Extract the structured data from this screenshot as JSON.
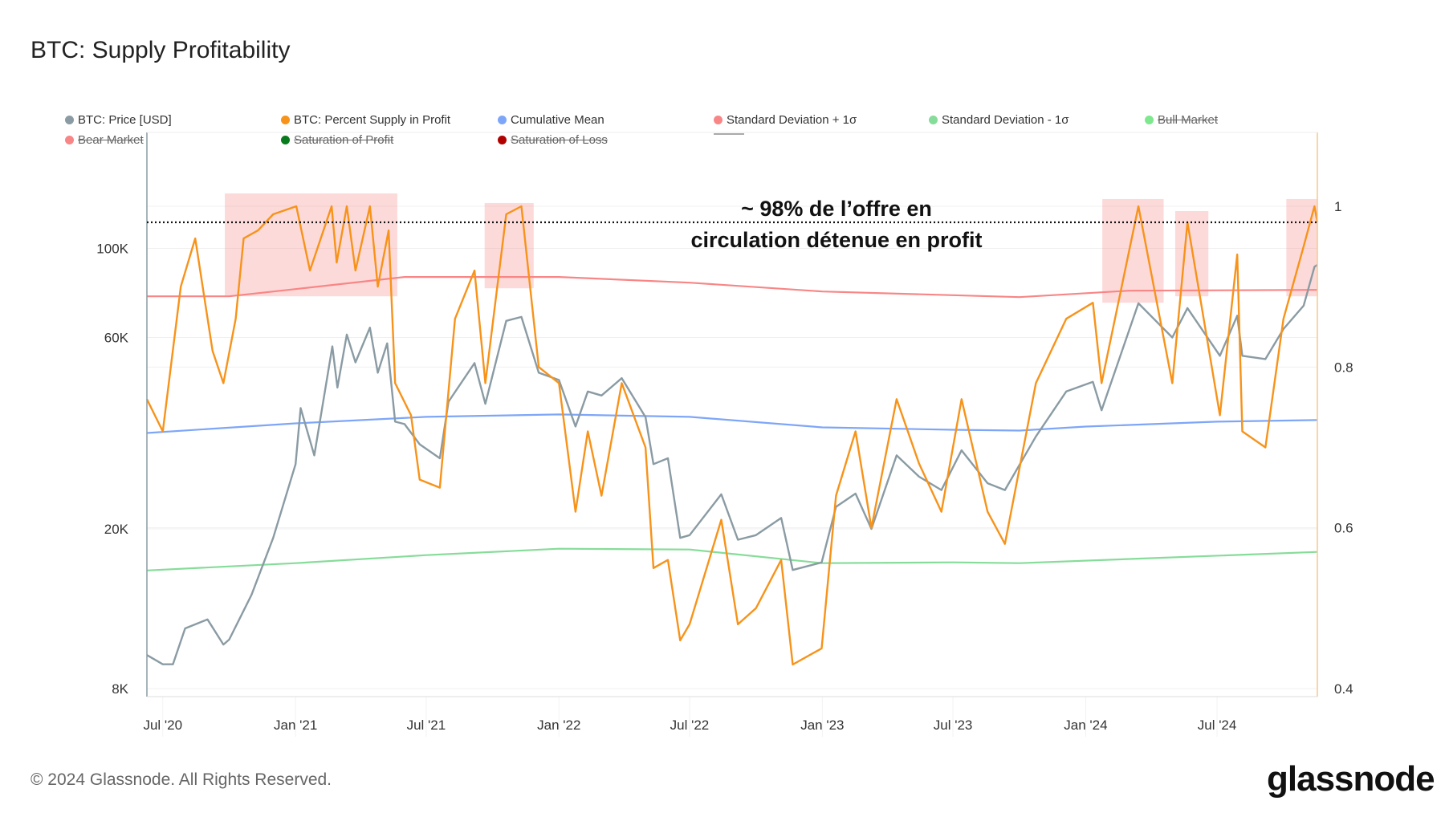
{
  "header": {
    "title": "BTC: Supply Profitability"
  },
  "legend": [
    {
      "label": "BTC: Price [USD]",
      "color": "#8a9ba3",
      "enabled": true
    },
    {
      "label": "BTC: Percent Supply in Profit",
      "color": "#f7931a",
      "enabled": true
    },
    {
      "label": "Cumulative Mean",
      "color": "#7ea6f8",
      "enabled": true
    },
    {
      "label": "Standard Deviation + 1σ",
      "color": "#f88686",
      "enabled": true
    },
    {
      "label": "Standard Deviation - 1σ",
      "color": "#86dc99",
      "enabled": true
    },
    {
      "label": "Bull Market",
      "color": "#7ee88f",
      "enabled": false
    },
    {
      "label": "Bear Market",
      "color": "#f88686",
      "enabled": false
    },
    {
      "label": "Saturation of Profit",
      "color": "#0a7a1e",
      "enabled": false
    },
    {
      "label": "Saturation of Loss",
      "color": "#b00000",
      "enabled": false
    },
    {
      "label": "---",
      "color": "#aaaaaa",
      "enabled": true
    }
  ],
  "footer": {
    "copyright": "© 2024 Glassnode. All Rights Reserved.",
    "logo": "glassnode"
  },
  "chart_data": {
    "type": "line",
    "title": "BTC: Supply Profitability",
    "x_range": [
      "2020-06-09",
      "2024-11-17"
    ],
    "x_ticks": [
      {
        "date": "2020-07-01",
        "label": "Jul '20"
      },
      {
        "date": "2021-01-01",
        "label": "Jan '21"
      },
      {
        "date": "2021-07-01",
        "label": "Jul '21"
      },
      {
        "date": "2022-01-01",
        "label": "Jan '22"
      },
      {
        "date": "2022-07-01",
        "label": "Jul '22"
      },
      {
        "date": "2023-01-01",
        "label": "Jan '23"
      },
      {
        "date": "2023-07-01",
        "label": "Jul '23"
      },
      {
        "date": "2024-01-01",
        "label": "Jan '24"
      },
      {
        "date": "2024-07-01",
        "label": "Jul '24"
      }
    ],
    "y_left": {
      "scale": "log",
      "range": [
        8000,
        200000
      ],
      "ticks": [
        {
          "v": 8000,
          "label": "8K"
        },
        {
          "v": 20000,
          "label": "20K"
        },
        {
          "v": 60000,
          "label": "60K"
        },
        {
          "v": 100000,
          "label": "100K"
        }
      ]
    },
    "y_right": {
      "scale": "linear",
      "range": [
        0.4,
        1.0
      ],
      "ticks": [
        {
          "v": 0.4,
          "label": "0.4"
        },
        {
          "v": 0.6,
          "label": "0.6"
        },
        {
          "v": 0.8,
          "label": "0.8"
        },
        {
          "v": 1.0,
          "label": "1"
        }
      ]
    },
    "grid": true,
    "legend_position": "top",
    "series": [
      {
        "name": "BTC: Price [USD]",
        "axis": "left",
        "color": "#8a9ba3",
        "points": [
          [
            "2020-06-09",
            9700
          ],
          [
            "2020-07-01",
            9200
          ],
          [
            "2020-07-15",
            9200
          ],
          [
            "2020-08-01",
            11300
          ],
          [
            "2020-09-01",
            11900
          ],
          [
            "2020-09-23",
            10300
          ],
          [
            "2020-10-01",
            10600
          ],
          [
            "2020-11-01",
            13700
          ],
          [
            "2020-12-01",
            19000
          ],
          [
            "2021-01-01",
            29000
          ],
          [
            "2021-01-08",
            40000
          ],
          [
            "2021-01-27",
            30500
          ],
          [
            "2021-02-21",
            57000
          ],
          [
            "2021-02-28",
            45000
          ],
          [
            "2021-03-13",
            61000
          ],
          [
            "2021-03-25",
            52000
          ],
          [
            "2021-04-14",
            63500
          ],
          [
            "2021-04-25",
            49000
          ],
          [
            "2021-05-08",
            58000
          ],
          [
            "2021-05-19",
            37000
          ],
          [
            "2021-06-01",
            36500
          ],
          [
            "2021-06-22",
            32500
          ],
          [
            "2021-07-20",
            30000
          ],
          [
            "2021-08-01",
            41500
          ],
          [
            "2021-09-06",
            51800
          ],
          [
            "2021-09-21",
            41000
          ],
          [
            "2021-10-20",
            66000
          ],
          [
            "2021-11-10",
            67500
          ],
          [
            "2021-12-04",
            49000
          ],
          [
            "2022-01-01",
            47000
          ],
          [
            "2022-01-24",
            36000
          ],
          [
            "2022-02-10",
            44000
          ],
          [
            "2022-03-01",
            43000
          ],
          [
            "2022-03-29",
            47500
          ],
          [
            "2022-05-01",
            38000
          ],
          [
            "2022-05-12",
            29000
          ],
          [
            "2022-06-01",
            30000
          ],
          [
            "2022-06-18",
            19000
          ],
          [
            "2022-07-01",
            19300
          ],
          [
            "2022-08-14",
            24400
          ],
          [
            "2022-09-06",
            18800
          ],
          [
            "2022-10-01",
            19300
          ],
          [
            "2022-11-05",
            21300
          ],
          [
            "2022-11-21",
            15800
          ],
          [
            "2022-12-31",
            16500
          ],
          [
            "2023-01-20",
            22700
          ],
          [
            "2023-02-16",
            24500
          ],
          [
            "2023-03-10",
            20000
          ],
          [
            "2023-04-14",
            30500
          ],
          [
            "2023-05-15",
            27000
          ],
          [
            "2023-06-15",
            25000
          ],
          [
            "2023-07-13",
            31400
          ],
          [
            "2023-08-18",
            26000
          ],
          [
            "2023-09-11",
            25000
          ],
          [
            "2023-10-24",
            34000
          ],
          [
            "2023-12-05",
            44000
          ],
          [
            "2024-01-11",
            46500
          ],
          [
            "2024-01-23",
            39500
          ],
          [
            "2024-03-14",
            73000
          ],
          [
            "2024-04-30",
            60000
          ],
          [
            "2024-05-21",
            71000
          ],
          [
            "2024-07-05",
            54000
          ],
          [
            "2024-07-29",
            68000
          ],
          [
            "2024-08-05",
            54000
          ],
          [
            "2024-09-06",
            53000
          ],
          [
            "2024-10-01",
            63000
          ],
          [
            "2024-10-29",
            72000
          ],
          [
            "2024-11-13",
            90000
          ],
          [
            "2024-11-17",
            91000
          ]
        ]
      },
      {
        "name": "BTC: Percent Supply in Profit",
        "axis": "right",
        "color": "#f7931a",
        "points": [
          [
            "2020-06-09",
            0.76
          ],
          [
            "2020-07-01",
            0.72
          ],
          [
            "2020-07-26",
            0.9
          ],
          [
            "2020-08-15",
            0.96
          ],
          [
            "2020-09-08",
            0.82
          ],
          [
            "2020-09-23",
            0.78
          ],
          [
            "2020-10-10",
            0.86
          ],
          [
            "2020-10-21",
            0.96
          ],
          [
            "2020-11-10",
            0.97
          ],
          [
            "2020-12-01",
            0.99
          ],
          [
            "2021-01-02",
            1.0
          ],
          [
            "2021-01-21",
            0.92
          ],
          [
            "2021-02-20",
            1.0
          ],
          [
            "2021-02-27",
            0.93
          ],
          [
            "2021-03-13",
            1.0
          ],
          [
            "2021-03-25",
            0.92
          ],
          [
            "2021-04-14",
            1.0
          ],
          [
            "2021-04-25",
            0.9
          ],
          [
            "2021-05-10",
            0.97
          ],
          [
            "2021-05-19",
            0.78
          ],
          [
            "2021-06-10",
            0.74
          ],
          [
            "2021-06-22",
            0.66
          ],
          [
            "2021-07-20",
            0.65
          ],
          [
            "2021-08-10",
            0.86
          ],
          [
            "2021-09-06",
            0.92
          ],
          [
            "2021-09-21",
            0.78
          ],
          [
            "2021-10-20",
            0.99
          ],
          [
            "2021-11-10",
            1.0
          ],
          [
            "2021-12-04",
            0.8
          ],
          [
            "2022-01-01",
            0.78
          ],
          [
            "2022-01-24",
            0.62
          ],
          [
            "2022-02-10",
            0.72
          ],
          [
            "2022-03-01",
            0.64
          ],
          [
            "2022-03-29",
            0.78
          ],
          [
            "2022-05-01",
            0.7
          ],
          [
            "2022-05-12",
            0.55
          ],
          [
            "2022-06-01",
            0.56
          ],
          [
            "2022-06-18",
            0.46
          ],
          [
            "2022-07-01",
            0.48
          ],
          [
            "2022-08-14",
            0.61
          ],
          [
            "2022-09-06",
            0.48
          ],
          [
            "2022-10-01",
            0.5
          ],
          [
            "2022-11-05",
            0.56
          ],
          [
            "2022-11-21",
            0.43
          ],
          [
            "2022-12-31",
            0.45
          ],
          [
            "2023-01-20",
            0.64
          ],
          [
            "2023-02-16",
            0.72
          ],
          [
            "2023-03-10",
            0.6
          ],
          [
            "2023-04-14",
            0.76
          ],
          [
            "2023-05-15",
            0.68
          ],
          [
            "2023-06-15",
            0.62
          ],
          [
            "2023-07-13",
            0.76
          ],
          [
            "2023-08-18",
            0.62
          ],
          [
            "2023-09-11",
            0.58
          ],
          [
            "2023-10-24",
            0.78
          ],
          [
            "2023-12-05",
            0.86
          ],
          [
            "2024-01-11",
            0.88
          ],
          [
            "2024-01-23",
            0.78
          ],
          [
            "2024-03-14",
            1.0
          ],
          [
            "2024-04-30",
            0.78
          ],
          [
            "2024-05-21",
            0.98
          ],
          [
            "2024-07-05",
            0.74
          ],
          [
            "2024-07-29",
            0.94
          ],
          [
            "2024-08-05",
            0.72
          ],
          [
            "2024-09-06",
            0.7
          ],
          [
            "2024-10-01",
            0.86
          ],
          [
            "2024-10-29",
            0.95
          ],
          [
            "2024-11-13",
            1.0
          ],
          [
            "2024-11-17",
            0.98
          ]
        ]
      },
      {
        "name": "Cumulative Mean",
        "axis": "right",
        "color": "#7ea6f8",
        "points": [
          [
            "2020-06-09",
            0.718
          ],
          [
            "2021-01-01",
            0.73
          ],
          [
            "2021-07-01",
            0.738
          ],
          [
            "2022-01-01",
            0.741
          ],
          [
            "2022-07-01",
            0.738
          ],
          [
            "2023-01-01",
            0.725
          ],
          [
            "2023-07-01",
            0.722
          ],
          [
            "2023-10-01",
            0.721
          ],
          [
            "2024-01-01",
            0.726
          ],
          [
            "2024-07-01",
            0.732
          ],
          [
            "2024-11-17",
            0.734
          ]
        ]
      },
      {
        "name": "Standard Deviation + 1σ",
        "axis": "right",
        "color": "#f88686",
        "points": [
          [
            "2020-06-09",
            0.888
          ],
          [
            "2020-10-01",
            0.888
          ],
          [
            "2021-01-01",
            0.897
          ],
          [
            "2021-06-01",
            0.912
          ],
          [
            "2022-01-01",
            0.912
          ],
          [
            "2022-07-01",
            0.905
          ],
          [
            "2023-01-01",
            0.894
          ],
          [
            "2023-10-01",
            0.887
          ],
          [
            "2024-03-01",
            0.895
          ],
          [
            "2024-11-17",
            0.896
          ]
        ]
      },
      {
        "name": "Standard Deviation - 1σ",
        "axis": "right",
        "color": "#86dc99",
        "points": [
          [
            "2020-06-09",
            0.547
          ],
          [
            "2021-01-01",
            0.556
          ],
          [
            "2021-07-01",
            0.566
          ],
          [
            "2022-01-01",
            0.574
          ],
          [
            "2022-07-01",
            0.573
          ],
          [
            "2023-01-01",
            0.556
          ],
          [
            "2023-07-01",
            0.557
          ],
          [
            "2023-10-01",
            0.556
          ],
          [
            "2024-11-17",
            0.57
          ]
        ]
      }
    ],
    "highlights": [
      {
        "from": "2020-09-25",
        "to": "2021-05-22",
        "y": [
          0.888,
          1.016
        ]
      },
      {
        "from": "2021-09-20",
        "to": "2021-11-27",
        "y": [
          0.898,
          1.004
        ]
      },
      {
        "from": "2024-01-24",
        "to": "2024-04-18",
        "y": [
          0.88,
          1.009
        ]
      },
      {
        "from": "2024-05-04",
        "to": "2024-06-19",
        "y": [
          0.888,
          0.994
        ]
      },
      {
        "from": "2024-10-05",
        "to": "2024-11-17",
        "y": [
          0.888,
          1.009
        ]
      }
    ],
    "reference_line": {
      "value": 0.98,
      "axis": "right",
      "style": "dotted"
    },
    "annotation": {
      "lines": [
        "~ 98% de l’offre en",
        "circulation détenue en profit"
      ]
    }
  }
}
